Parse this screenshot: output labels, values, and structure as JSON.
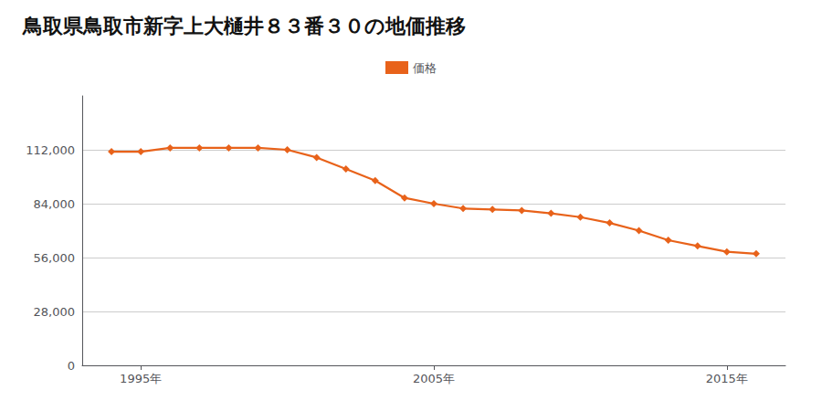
{
  "chart_data": {
    "type": "line",
    "title": "鳥取県鳥取市新字上大樋井８３番３０の地価推移",
    "legend": "top",
    "grid": true,
    "x": [
      1994,
      1995,
      1996,
      1997,
      1998,
      1999,
      2000,
      2001,
      2002,
      2003,
      2004,
      2005,
      2006,
      2007,
      2008,
      2009,
      2010,
      2011,
      2012,
      2013,
      2014,
      2015,
      2016
    ],
    "series": [
      {
        "name": "価格",
        "color": "#e8621a",
        "marker": "diamond",
        "values": [
          111000,
          111000,
          113000,
          113000,
          113000,
          113000,
          112000,
          108000,
          102000,
          96000,
          87000,
          84000,
          81500,
          81000,
          80500,
          79000,
          77000,
          74000,
          70000,
          65000,
          62000,
          59000,
          58000
        ]
      }
    ],
    "xlim": [
      1993,
      2017
    ],
    "xticks": [
      {
        "value": 1995,
        "label": "1995年"
      },
      {
        "value": 2005,
        "label": "2005年"
      },
      {
        "value": 2015,
        "label": "2015年"
      }
    ],
    "ylim": [
      0,
      140000
    ],
    "yticks": [
      0,
      {
        "value": 28000,
        "label": "28,000"
      },
      {
        "value": 56000,
        "label": "56,000"
      },
      {
        "value": 84000,
        "label": "84,000"
      },
      {
        "value": 112000,
        "label": "112,000"
      }
    ]
  }
}
